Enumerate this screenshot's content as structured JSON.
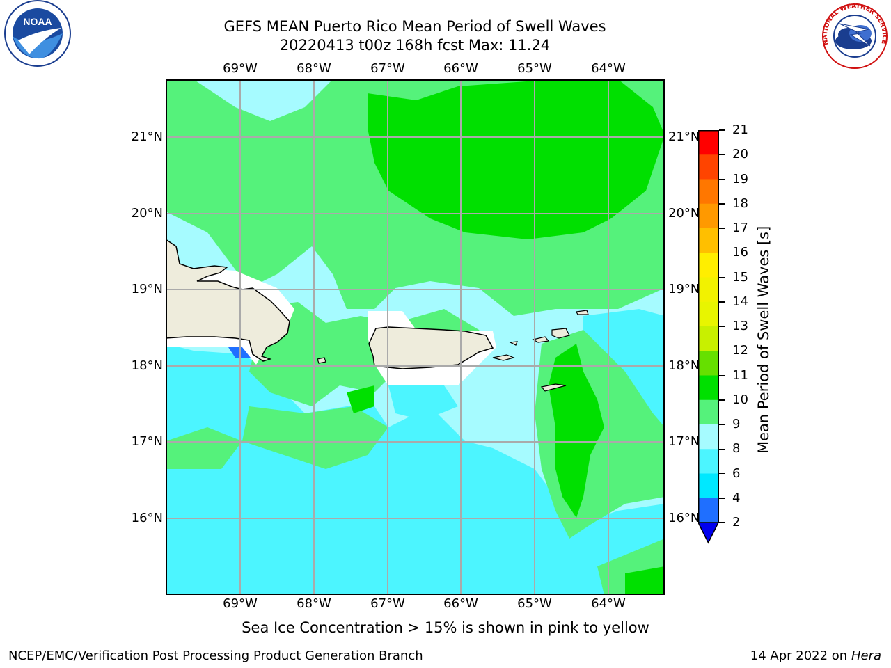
{
  "title": {
    "line1": "GEFS MEAN Puerto Rico Mean Period of Swell Waves",
    "line2": "20220413 t00z 168h fcst   Max: 11.24"
  },
  "map": {
    "lon_labels": [
      "69°W",
      "68°W",
      "67°W",
      "66°W",
      "65°W",
      "64°W"
    ],
    "lat_labels": [
      "21°N",
      "20°N",
      "19°N",
      "18°N",
      "17°N",
      "16°N"
    ]
  },
  "colorbar": {
    "label": "Mean Period of Swell Waves [s]",
    "ticks": [
      "21",
      "20",
      "19",
      "18",
      "17",
      "16",
      "15",
      "14",
      "13",
      "12",
      "11",
      "10",
      "9",
      "8",
      "6",
      "4",
      "2"
    ],
    "colors": {
      "2-4": "#1f6fff",
      "4-6": "#00e8ff",
      "6-8": "#4cf5ff",
      "8-9": "#a6fbff",
      "9-10": "#55f27b",
      "10-11": "#00e000",
      "11-12": "#66e000",
      "12-13": "#c8f000",
      "13-14": "#e8f500",
      "14-15": "#f2f200",
      "15-16": "#ffee00",
      "16-17": "#ffbf00",
      "17-18": "#ff9900",
      "18-19": "#ff7700",
      "19-20": "#ff4400",
      "20-21": "#ff0000",
      "under": "#0000ee"
    },
    "land": "#eeecdc"
  },
  "note": "Sea Ice Concentration > 15% is shown in pink to yellow",
  "footer": {
    "left": "NCEP/EMC/Verification Post Processing Product Generation Branch",
    "right_prefix": "14 Apr 2022 on ",
    "right_italic": "Hera"
  },
  "logos": {
    "noaa": "NOAA",
    "nws_ring": "NATIONAL WEATHER SERVICE"
  }
}
